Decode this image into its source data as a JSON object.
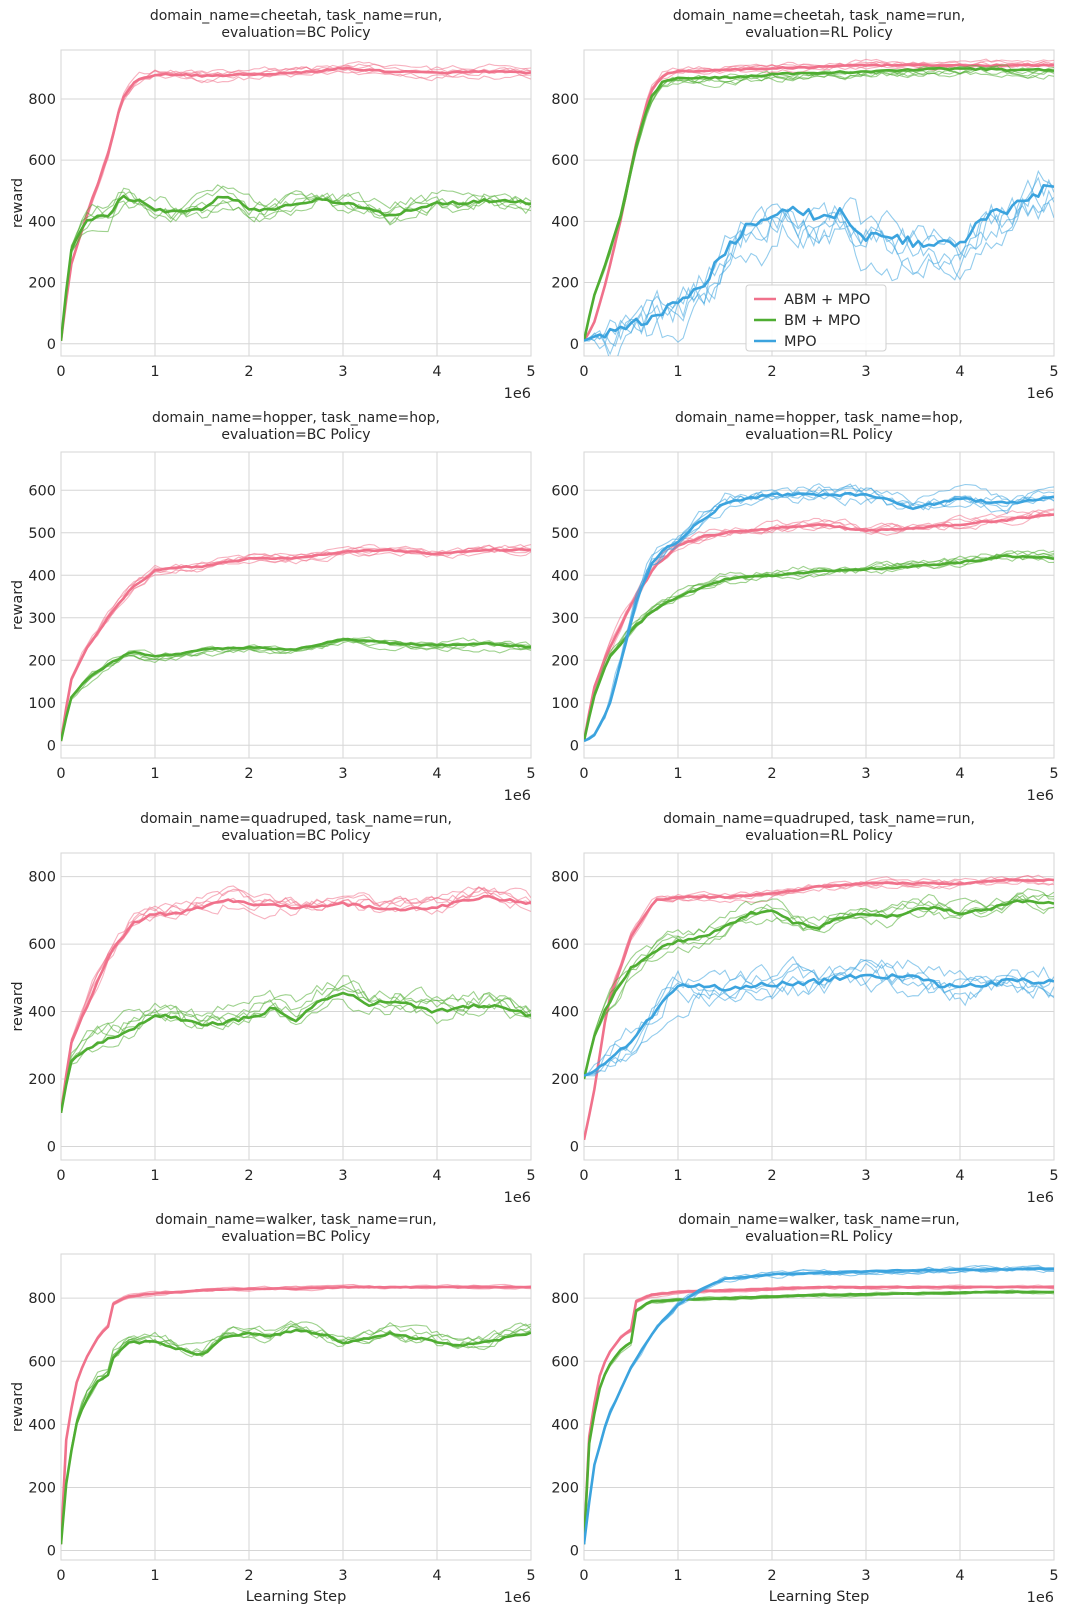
{
  "chart_data": [
    {
      "type": "line",
      "title": [
        "domain_name=cheetah, task_name=run,",
        "evaluation=BC Policy"
      ],
      "ylabel": "reward",
      "xlabel": "",
      "x_exponent": "1e6",
      "xlim": [
        0,
        5
      ],
      "ylim": [
        -40,
        960
      ],
      "yticks": [
        0,
        200,
        400,
        600,
        800
      ],
      "xticks": [
        0,
        1,
        2,
        3,
        4,
        5
      ],
      "series": [
        {
          "name": "ABM + MPO",
          "color": "#f0718b",
          "x": [
            0,
            0.1,
            0.25,
            0.4,
            0.5,
            0.65,
            0.8,
            1,
            1.25,
            1.5,
            2,
            2.5,
            3,
            3.5,
            4,
            4.5,
            5
          ],
          "y": [
            10,
            250,
            400,
            530,
            620,
            800,
            860,
            880,
            880,
            875,
            880,
            885,
            900,
            890,
            885,
            890,
            885
          ],
          "runs": 5,
          "spread": 30
        },
        {
          "name": "BM + MPO",
          "color": "#4fad32",
          "x": [
            0,
            0.1,
            0.25,
            0.4,
            0.5,
            0.65,
            0.8,
            1,
            1.25,
            1.5,
            1.75,
            2,
            2.25,
            2.5,
            2.75,
            3,
            3.25,
            3.5,
            3.75,
            4,
            4.25,
            4.5,
            4.75,
            5
          ],
          "y": [
            10,
            300,
            400,
            420,
            420,
            480,
            470,
            440,
            430,
            440,
            490,
            440,
            440,
            460,
            470,
            460,
            440,
            420,
            440,
            460,
            460,
            470,
            470,
            460
          ],
          "runs": 5,
          "spread": 70
        }
      ]
    },
    {
      "type": "line",
      "title": [
        "domain_name=cheetah, task_name=run,",
        "evaluation=RL Policy"
      ],
      "ylabel": "",
      "xlabel": "",
      "x_exponent": "1e6",
      "xlim": [
        0,
        5
      ],
      "ylim": [
        -40,
        960
      ],
      "yticks": [
        0,
        200,
        400,
        600,
        800
      ],
      "xticks": [
        0,
        1,
        2,
        3,
        4,
        5
      ],
      "legend": {
        "position": "center-bottom",
        "entries": [
          "ABM + MPO",
          "BM + MPO",
          "MPO"
        ]
      },
      "series": [
        {
          "name": "ABM + MPO",
          "color": "#f0718b",
          "x": [
            0,
            0.1,
            0.25,
            0.4,
            0.55,
            0.7,
            0.85,
            1,
            1.5,
            2,
            2.5,
            3,
            3.5,
            4,
            4.5,
            5
          ],
          "y": [
            10,
            60,
            220,
            420,
            650,
            820,
            880,
            890,
            895,
            900,
            905,
            910,
            910,
            910,
            910,
            910
          ],
          "runs": 5,
          "spread": 25
        },
        {
          "name": "BM + MPO",
          "color": "#4fad32",
          "x": [
            0,
            0.1,
            0.25,
            0.4,
            0.55,
            0.7,
            0.85,
            1,
            1.25,
            1.5,
            2,
            2.5,
            3,
            3.5,
            4,
            4.5,
            5
          ],
          "y": [
            10,
            150,
            280,
            430,
            640,
            800,
            860,
            870,
            870,
            870,
            880,
            885,
            890,
            895,
            900,
            895,
            895
          ],
          "runs": 5,
          "spread": 35
        },
        {
          "name": "MPO",
          "color": "#3ba3de",
          "x": [
            0,
            0.25,
            0.5,
            0.75,
            1,
            1.25,
            1.5,
            1.75,
            2,
            2.25,
            2.5,
            2.75,
            3,
            3.25,
            3.5,
            3.75,
            4,
            4.25,
            4.5,
            4.75,
            5
          ],
          "y": [
            10,
            40,
            60,
            90,
            130,
            190,
            300,
            390,
            430,
            450,
            410,
            430,
            350,
            360,
            330,
            320,
            330,
            410,
            440,
            480,
            520
          ],
          "runs": 5,
          "spread": 180
        }
      ]
    },
    {
      "type": "line",
      "title": [
        "domain_name=hopper, task_name=hop,",
        "evaluation=BC Policy"
      ],
      "ylabel": "reward",
      "xlabel": "",
      "x_exponent": "1e6",
      "xlim": [
        0,
        5
      ],
      "ylim": [
        -30,
        690
      ],
      "yticks": [
        0,
        100,
        200,
        300,
        400,
        500,
        600
      ],
      "xticks": [
        0,
        1,
        2,
        3,
        4,
        5
      ],
      "series": [
        {
          "name": "ABM + MPO",
          "color": "#f0718b",
          "x": [
            0,
            0.1,
            0.25,
            0.5,
            0.75,
            1,
            1.25,
            1.5,
            2,
            2.5,
            3,
            3.5,
            4,
            4.5,
            5
          ],
          "y": [
            10,
            150,
            220,
            300,
            370,
            410,
            420,
            420,
            440,
            440,
            455,
            460,
            450,
            460,
            460
          ],
          "runs": 5,
          "spread": 20
        },
        {
          "name": "BM + MPO",
          "color": "#4fad32",
          "x": [
            0,
            0.1,
            0.25,
            0.5,
            0.75,
            1,
            1.25,
            1.5,
            2,
            2.5,
            3,
            3.5,
            4,
            4.5,
            5
          ],
          "y": [
            10,
            110,
            150,
            190,
            220,
            210,
            215,
            225,
            230,
            225,
            250,
            240,
            235,
            240,
            230
          ],
          "runs": 5,
          "spread": 20
        }
      ]
    },
    {
      "type": "line",
      "title": [
        "domain_name=hopper, task_name=hop,",
        "evaluation=RL Policy"
      ],
      "ylabel": "",
      "xlabel": "",
      "x_exponent": "1e6",
      "xlim": [
        0,
        5
      ],
      "ylim": [
        -30,
        690
      ],
      "yticks": [
        0,
        100,
        200,
        300,
        400,
        500,
        600
      ],
      "xticks": [
        0,
        1,
        2,
        3,
        4,
        5
      ],
      "series": [
        {
          "name": "ABM + MPO",
          "color": "#f0718b",
          "x": [
            0,
            0.1,
            0.25,
            0.5,
            0.75,
            1,
            1.25,
            1.5,
            2,
            2.5,
            3,
            3.5,
            4,
            4.5,
            5
          ],
          "y": [
            10,
            130,
            220,
            330,
            420,
            470,
            490,
            500,
            510,
            520,
            505,
            510,
            520,
            530,
            545
          ],
          "runs": 5,
          "spread": 25
        },
        {
          "name": "BM + MPO",
          "color": "#4fad32",
          "x": [
            0,
            0.1,
            0.25,
            0.5,
            0.75,
            1,
            1.25,
            1.5,
            2,
            2.5,
            3,
            3.5,
            4,
            4.5,
            5
          ],
          "y": [
            10,
            110,
            200,
            270,
            320,
            350,
            370,
            390,
            400,
            410,
            415,
            420,
            430,
            445,
            440
          ],
          "runs": 5,
          "spread": 25
        },
        {
          "name": "MPO",
          "color": "#3ba3de",
          "x": [
            0,
            0.1,
            0.25,
            0.4,
            0.55,
            0.7,
            0.85,
            1,
            1.25,
            1.5,
            2,
            2.5,
            3,
            3.5,
            4,
            4.5,
            5
          ],
          "y": [
            10,
            20,
            80,
            200,
            330,
            420,
            460,
            480,
            530,
            570,
            590,
            590,
            590,
            560,
            580,
            570,
            585
          ],
          "runs": 5,
          "spread": 40
        }
      ]
    },
    {
      "type": "line",
      "title": [
        "domain_name=quadruped, task_name=run,",
        "evaluation=BC Policy"
      ],
      "ylabel": "reward",
      "xlabel": "",
      "x_exponent": "1e6",
      "xlim": [
        0,
        5
      ],
      "ylim": [
        -40,
        870
      ],
      "yticks": [
        0,
        200,
        400,
        600,
        800
      ],
      "xticks": [
        0,
        1,
        2,
        3,
        4,
        5
      ],
      "series": [
        {
          "name": "ABM + MPO",
          "color": "#f0718b",
          "x": [
            0,
            0.1,
            0.25,
            0.5,
            0.75,
            1,
            1.25,
            1.5,
            1.75,
            2,
            2.5,
            3,
            3.5,
            4,
            4.5,
            5
          ],
          "y": [
            100,
            300,
            400,
            560,
            660,
            690,
            690,
            710,
            730,
            720,
            710,
            720,
            700,
            710,
            740,
            720
          ],
          "runs": 5,
          "spread": 50
        },
        {
          "name": "BM + MPO",
          "color": "#4fad32",
          "x": [
            0,
            0.1,
            0.25,
            0.5,
            0.75,
            1,
            1.25,
            1.5,
            2,
            2.25,
            2.5,
            2.75,
            3,
            3.25,
            3.5,
            4,
            4.25,
            4.5,
            5
          ],
          "y": [
            100,
            250,
            290,
            320,
            350,
            390,
            380,
            360,
            380,
            410,
            370,
            430,
            460,
            420,
            430,
            400,
            410,
            420,
            390
          ],
          "runs": 5,
          "spread": 70
        }
      ]
    },
    {
      "type": "line",
      "title": [
        "domain_name=quadruped, task_name=run,",
        "evaluation=RL Policy"
      ],
      "ylabel": "",
      "xlabel": "",
      "x_exponent": "1e6",
      "xlim": [
        0,
        5
      ],
      "ylim": [
        -40,
        870
      ],
      "yticks": [
        0,
        200,
        400,
        600,
        800
      ],
      "xticks": [
        0,
        1,
        2,
        3,
        4,
        5
      ],
      "series": [
        {
          "name": "ABM + MPO",
          "color": "#f0718b",
          "x": [
            0,
            0.1,
            0.25,
            0.5,
            0.75,
            1,
            1.5,
            2,
            2.5,
            3,
            3.5,
            4,
            4.5,
            5
          ],
          "y": [
            20,
            150,
            420,
            620,
            730,
            740,
            740,
            750,
            770,
            780,
            780,
            780,
            790,
            790
          ],
          "runs": 5,
          "spread": 25
        },
        {
          "name": "BM + MPO",
          "color": "#4fad32",
          "x": [
            0,
            0.1,
            0.25,
            0.5,
            0.75,
            1,
            1.25,
            1.5,
            1.75,
            2,
            2.25,
            2.5,
            2.75,
            3,
            3.25,
            3.5,
            3.75,
            4,
            4.25,
            4.5,
            4.75,
            5
          ],
          "y": [
            200,
            320,
            420,
            530,
            580,
            610,
            620,
            650,
            690,
            700,
            660,
            650,
            680,
            690,
            680,
            700,
            710,
            690,
            700,
            720,
            730,
            720
          ],
          "runs": 5,
          "spread": 50
        },
        {
          "name": "MPO",
          "color": "#3ba3de",
          "x": [
            0,
            0.1,
            0.25,
            0.5,
            0.75,
            1,
            1.5,
            2,
            2.5,
            3,
            3.5,
            3.75,
            4,
            4.5,
            5
          ],
          "y": [
            210,
            220,
            260,
            310,
            400,
            480,
            470,
            480,
            490,
            510,
            500,
            480,
            470,
            490,
            490
          ],
          "runs": 5,
          "spread": 90
        }
      ]
    },
    {
      "type": "line",
      "title": [
        "domain_name=walker, task_name=run,",
        "evaluation=BC Policy"
      ],
      "ylabel": "reward",
      "xlabel": "Learning Step",
      "x_exponent": "1e6",
      "xlim": [
        0,
        5
      ],
      "ylim": [
        -30,
        940
      ],
      "yticks": [
        0,
        200,
        400,
        600,
        800
      ],
      "xticks": [
        0,
        1,
        2,
        3,
        4,
        5
      ],
      "series": [
        {
          "name": "ABM + MPO",
          "color": "#f0718b",
          "x": [
            0,
            0.05,
            0.15,
            0.25,
            0.4,
            0.5,
            0.55,
            0.7,
            1,
            1.5,
            2,
            2.5,
            3,
            3.5,
            4,
            4.5,
            5
          ],
          "y": [
            20,
            340,
            520,
            600,
            680,
            710,
            780,
            805,
            815,
            825,
            830,
            830,
            835,
            835,
            835,
            835,
            835
          ],
          "runs": 5,
          "spread": 10
        },
        {
          "name": "BM + MPO",
          "color": "#4fad32",
          "x": [
            0,
            0.05,
            0.15,
            0.25,
            0.4,
            0.5,
            0.55,
            0.7,
            1,
            1.25,
            1.5,
            1.75,
            2,
            2.25,
            2.5,
            2.75,
            3,
            3.25,
            3.5,
            4,
            4.25,
            4.5,
            5
          ],
          "y": [
            20,
            200,
            390,
            470,
            540,
            560,
            610,
            660,
            660,
            640,
            620,
            680,
            690,
            680,
            700,
            690,
            660,
            670,
            690,
            660,
            650,
            660,
            690
          ],
          "runs": 5,
          "spread": 45
        }
      ]
    },
    {
      "type": "line",
      "title": [
        "domain_name=walker, task_name=run,",
        "evaluation=RL Policy"
      ],
      "ylabel": "",
      "xlabel": "Learning Step",
      "x_exponent": "1e6",
      "xlim": [
        0,
        5
      ],
      "ylim": [
        -30,
        940
      ],
      "yticks": [
        0,
        200,
        400,
        600,
        800
      ],
      "xticks": [
        0,
        1,
        2,
        3,
        4,
        5
      ],
      "series": [
        {
          "name": "ABM + MPO",
          "color": "#f0718b",
          "x": [
            0,
            0.05,
            0.15,
            0.25,
            0.4,
            0.5,
            0.55,
            0.7,
            1,
            1.5,
            2,
            2.5,
            3,
            3.5,
            4,
            4.5,
            5
          ],
          "y": [
            20,
            350,
            540,
            620,
            680,
            700,
            790,
            810,
            820,
            825,
            830,
            835,
            835,
            835,
            835,
            835,
            835
          ],
          "runs": 5,
          "spread": 10
        },
        {
          "name": "BM + MPO",
          "color": "#4fad32",
          "x": [
            0,
            0.05,
            0.15,
            0.25,
            0.4,
            0.5,
            0.55,
            0.7,
            1,
            1.5,
            2,
            2.5,
            3,
            3.5,
            4,
            4.5,
            5
          ],
          "y": [
            20,
            330,
            500,
            580,
            640,
            660,
            760,
            790,
            795,
            800,
            805,
            810,
            812,
            815,
            818,
            820,
            820
          ],
          "runs": 5,
          "spread": 10
        },
        {
          "name": "MPO",
          "color": "#3ba3de",
          "x": [
            0,
            0.1,
            0.25,
            0.5,
            0.75,
            1,
            1.25,
            1.5,
            2,
            2.5,
            3,
            3.5,
            4,
            4.5,
            5
          ],
          "y": [
            20,
            260,
            420,
            580,
            700,
            780,
            830,
            860,
            875,
            880,
            885,
            888,
            890,
            892,
            893
          ],
          "runs": 5,
          "spread": 20
        }
      ]
    }
  ]
}
